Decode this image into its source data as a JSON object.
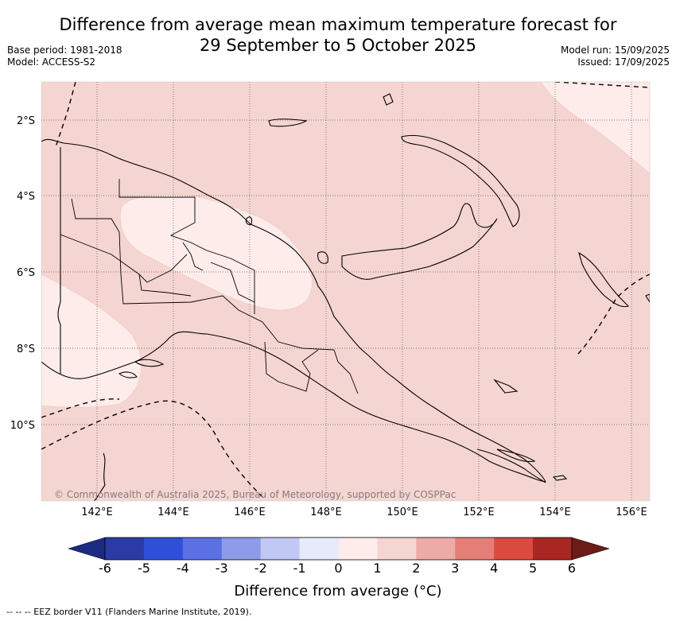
{
  "title": {
    "line1": "Difference from average mean maximum temperature forecast for",
    "line2": "29 September to 5 October 2025"
  },
  "meta_left": {
    "base_period": "Base period: 1981-2018",
    "model": "Model: ACCESS-S2"
  },
  "meta_right": {
    "model_run": "Model run: 15/09/2025",
    "issued": "Issued: 17/09/2025"
  },
  "map": {
    "lon_ticks": [
      "142°E",
      "144°E",
      "146°E",
      "148°E",
      "150°E",
      "152°E",
      "154°E",
      "156°E"
    ],
    "lat_ticks": [
      "2°S",
      "4°S",
      "6°S",
      "8°S",
      "10°S"
    ],
    "copyright": "© Commonwealth of Australia 2025, Bureau of Meteorology, supported by COSPPac",
    "fill_colors": {
      "zero_to_one": "#fdecea",
      "one_to_two": "#f5d5d2"
    }
  },
  "colorbar": {
    "labels": [
      "-6",
      "-5",
      "-4",
      "-3",
      "-2",
      "-1",
      "0",
      "1",
      "2",
      "3",
      "4",
      "5",
      "6"
    ],
    "colors": [
      "#2a3ba5",
      "#2f4fd8",
      "#5b70e2",
      "#8c9bea",
      "#c2c8f4",
      "#e7eaf9",
      "#fdecea",
      "#f5d5d2",
      "#eeaaa4",
      "#e57e76",
      "#da4a3f",
      "#aa2622"
    ],
    "under_color": "#1b2a83",
    "over_color": "#6b1c17",
    "title": "Difference from average (°C)"
  },
  "footnote": "--  --  -- EEZ border V11 (Flanders Marine Institute, 2019)."
}
